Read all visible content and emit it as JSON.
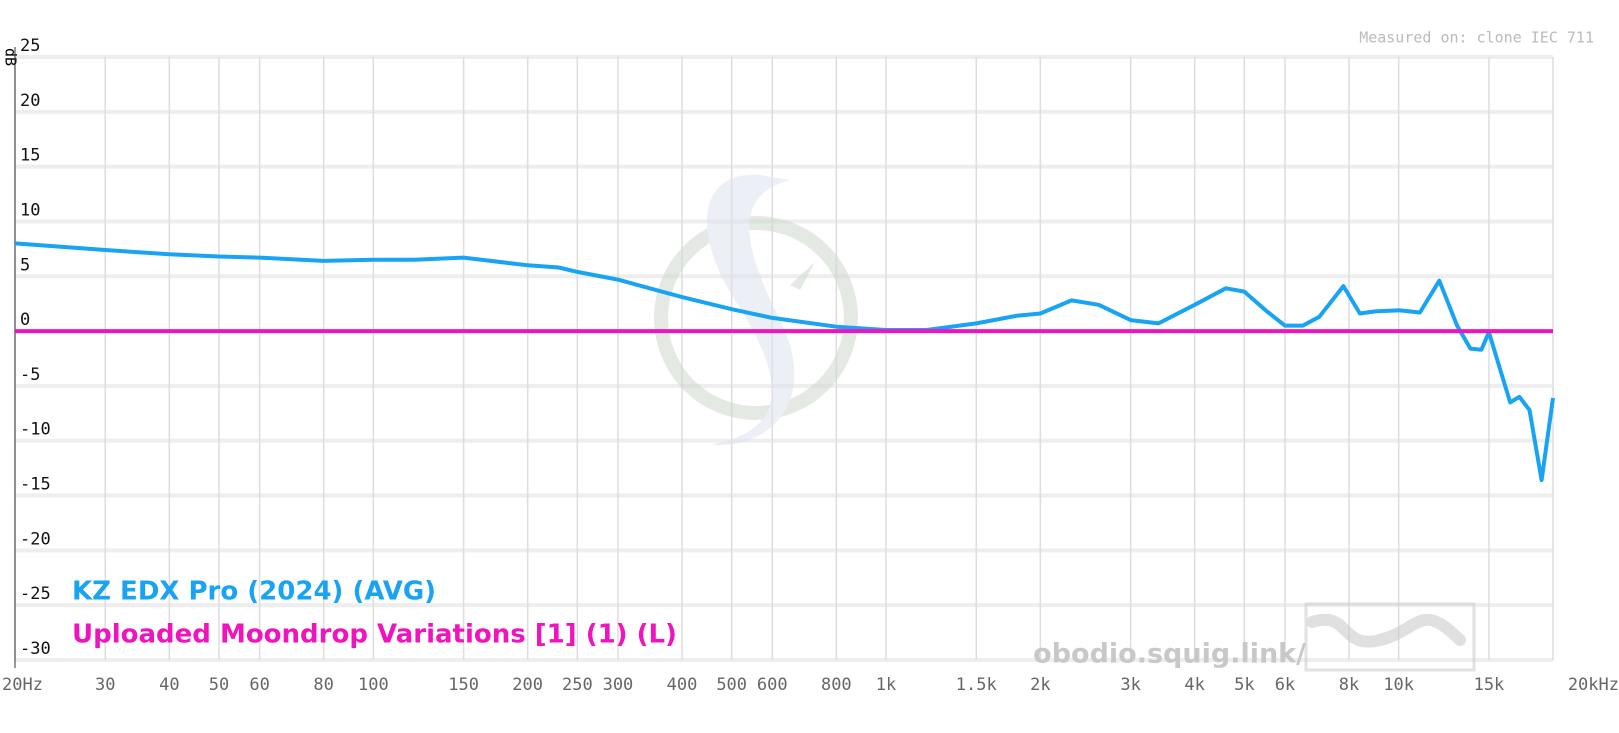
{
  "chart_data": {
    "type": "line",
    "y_label": "dB",
    "note": "Measured on: clone IEC 711",
    "watermark": "obodio.squig.link/",
    "log_x": true,
    "grid": true,
    "xlim": [
      20,
      20000
    ],
    "ylim": [
      -30,
      25
    ],
    "xticks": [
      {
        "value": 20,
        "label": "20Hz"
      },
      30,
      40,
      50,
      60,
      80,
      100,
      150,
      200,
      250,
      300,
      400,
      500,
      600,
      800,
      {
        "value": 1000,
        "label": "1k"
      },
      {
        "value": 1500,
        "label": "1.5k"
      },
      {
        "value": 2000,
        "label": "2k"
      },
      {
        "value": 3000,
        "label": "3k"
      },
      {
        "value": 4000,
        "label": "4k"
      },
      {
        "value": 5000,
        "label": "5k"
      },
      {
        "value": 6000,
        "label": "6k"
      },
      {
        "value": 8000,
        "label": "8k"
      },
      {
        "value": 10000,
        "label": "10k"
      },
      {
        "value": 15000,
        "label": "15k"
      },
      {
        "value": 20000,
        "label": "20kHz"
      }
    ],
    "yticks": [
      25,
      20,
      15,
      10,
      5,
      0,
      -5,
      -10,
      -15,
      -20,
      -25,
      -30
    ],
    "x": [
      20,
      30,
      40,
      50,
      60,
      80,
      100,
      120,
      150,
      200,
      230,
      250,
      300,
      400,
      500,
      600,
      800,
      1000,
      1200,
      1500,
      1800,
      2000,
      2300,
      2600,
      3000,
      3400,
      4000,
      4600,
      5000,
      5500,
      6000,
      6500,
      7000,
      7800,
      8400,
      9000,
      10000,
      11000,
      12000,
      13000,
      13800,
      14500,
      15000,
      15800,
      16500,
      17200,
      18000,
      19000,
      20000
    ],
    "series": [
      {
        "name": "KZ EDX Pro (2024) (AVG)",
        "color": "#18a4f2",
        "values": [
          8.0,
          7.4,
          7.0,
          6.8,
          6.7,
          6.4,
          6.5,
          6.5,
          6.7,
          6.0,
          5.8,
          5.4,
          4.7,
          3.1,
          2.0,
          1.2,
          0.4,
          0.1,
          0.1,
          0.7,
          1.4,
          1.6,
          2.8,
          2.4,
          1.0,
          0.7,
          2.4,
          3.9,
          3.6,
          1.9,
          0.5,
          0.5,
          1.3,
          4.1,
          1.6,
          1.8,
          1.9,
          1.7,
          4.6,
          0.5,
          -1.6,
          -1.7,
          -0.1,
          -3.6,
          -6.5,
          -6.0,
          -7.2,
          -13.6,
          -6.1
        ]
      },
      {
        "name": "Uploaded Moondrop Variations [1] (1) (L)",
        "color": "#f014be",
        "values": [
          0,
          0,
          0,
          0,
          0,
          0,
          0,
          0,
          0,
          0,
          0,
          0,
          0,
          0,
          0,
          0,
          0,
          0,
          0,
          0,
          0,
          0,
          0,
          0,
          0,
          0,
          0,
          0,
          0,
          0,
          0,
          0,
          0,
          0,
          0,
          0,
          0,
          0,
          0,
          0,
          0,
          0,
          0,
          0,
          0,
          0,
          0,
          0,
          0
        ]
      }
    ]
  }
}
